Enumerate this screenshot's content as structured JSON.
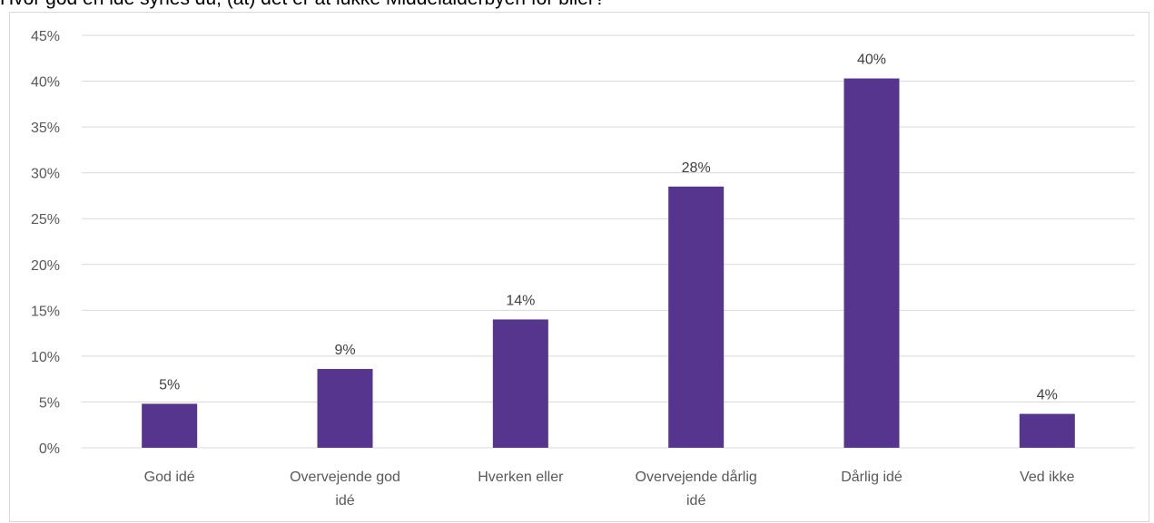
{
  "chart_data": {
    "type": "bar",
    "title": "Hvor god en idé synes du, (at) det er at lukke Middelalderbyen for biler?",
    "xlabel": "",
    "ylabel": "",
    "categories": [
      [
        "God idé"
      ],
      [
        "Overvejende god",
        "idé"
      ],
      [
        "Hverken eller"
      ],
      [
        "Overvejende dårlig",
        "idé"
      ],
      [
        "Dårlig idé"
      ],
      [
        "Ved ikke"
      ]
    ],
    "values": [
      4.8,
      8.6,
      14.0,
      28.5,
      40.3,
      3.7
    ],
    "value_labels": [
      "5%",
      "9%",
      "14%",
      "28%",
      "40%",
      "4%"
    ],
    "ylim": [
      0,
      45
    ],
    "yticks": [
      "0%",
      "5%",
      "10%",
      "15%",
      "20%",
      "25%",
      "30%",
      "35%",
      "40%",
      "45%"
    ],
    "grid": true,
    "legend": "none",
    "bar_color": "#56358f"
  }
}
